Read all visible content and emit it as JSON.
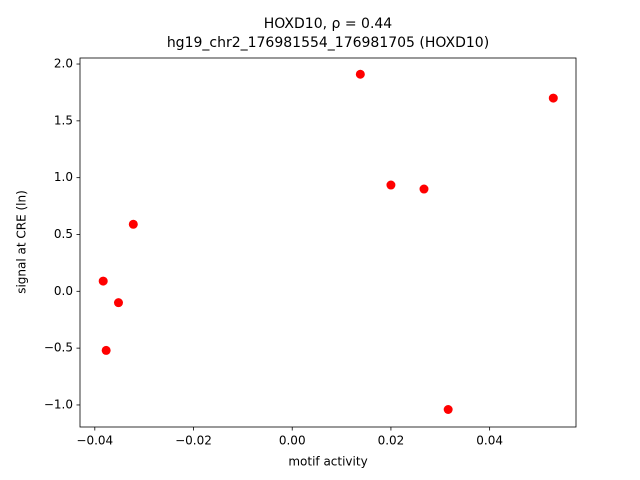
{
  "chart_data": {
    "type": "scatter",
    "title": "HOXD10, ρ = 0.44",
    "subtitle": "hg19_chr2_176981554_176981705 (HOXD10)",
    "x_label": "motif activity",
    "y_label": "signal at CRE (ln)",
    "color": "#ff0000",
    "x": [
      0.0138,
      0.0529,
      0.02,
      0.0267,
      -0.0322,
      -0.0383,
      -0.0352,
      -0.0377,
      0.0316
    ],
    "values": [
      1.91,
      1.7,
      0.935,
      0.9,
      0.59,
      0.09,
      -0.1,
      -0.52,
      -1.04
    ],
    "xlim": [
      -0.043,
      0.0575
    ],
    "ylim": [
      -1.194,
      2.053
    ],
    "xticks": [
      {
        "value": -0.04,
        "label": "−0.04"
      },
      {
        "value": -0.02,
        "label": "−0.02"
      },
      {
        "value": 0,
        "label": "0.00"
      },
      0.02,
      0.04
    ],
    "yticks": [
      {
        "value": -1.0,
        "label": "−1.0"
      },
      {
        "value": -0.5,
        "label": "−0.5"
      },
      {
        "value": 0,
        "label": "0.0"
      },
      0.5,
      {
        "value": 1.0,
        "label": "1.0"
      },
      1.5,
      {
        "value": 2.0,
        "label": "2.0"
      }
    ],
    "grid": false
  }
}
